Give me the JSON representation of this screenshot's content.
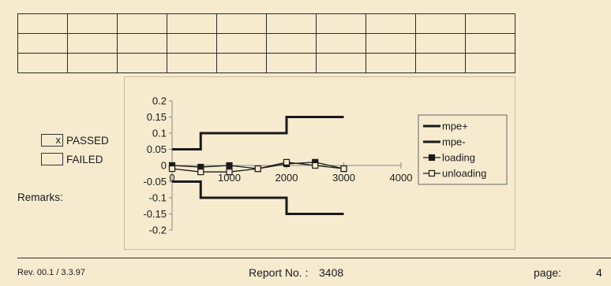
{
  "status": {
    "passed": {
      "mark": "x",
      "label": "PASSED"
    },
    "failed": {
      "mark": "",
      "label": "FAILED"
    }
  },
  "remarks_label": "Remarks:",
  "footer": {
    "revision": "Rev. 00.1 / 3.3.97",
    "report_label": "Report No. :",
    "report_number": "3408",
    "page_label": "page:",
    "page_number": "4"
  },
  "chart_data": {
    "type": "line",
    "title": "",
    "xlabel": "",
    "ylabel": "",
    "xlim": [
      0,
      4000
    ],
    "ylim": [
      -0.2,
      0.2
    ],
    "x_ticks": [
      0,
      1000,
      2000,
      3000,
      4000
    ],
    "y_ticks": [
      0.2,
      0.15,
      0.1,
      0.05,
      0,
      -0.05,
      -0.1,
      -0.15,
      -0.2
    ],
    "grid": false,
    "legend_position": "right",
    "series": [
      {
        "name": "mpe+",
        "style": "step",
        "color": "#1a1a1a",
        "x": [
          0,
          500,
          500,
          2000,
          2000,
          3000
        ],
        "y": [
          0.05,
          0.05,
          0.1,
          0.1,
          0.15,
          0.15
        ]
      },
      {
        "name": "mpe-",
        "style": "step",
        "color": "#1a1a1a",
        "x": [
          0,
          500,
          500,
          2000,
          2000,
          3000
        ],
        "y": [
          -0.05,
          -0.05,
          -0.1,
          -0.1,
          -0.15,
          -0.15
        ]
      },
      {
        "name": "loading",
        "marker": "filled-square",
        "color": "#1a1a1a",
        "x": [
          0,
          500,
          1000,
          1500,
          2000,
          2500,
          3000
        ],
        "y": [
          0,
          -0.005,
          0,
          -0.01,
          0.005,
          0.01,
          -0.01
        ]
      },
      {
        "name": "unloading",
        "marker": "open-square",
        "color": "#1a1a1a",
        "x": [
          0,
          500,
          1000,
          1500,
          2000,
          2500,
          3000
        ],
        "y": [
          -0.01,
          -0.02,
          -0.02,
          -0.01,
          0.01,
          0,
          -0.01
        ]
      }
    ]
  }
}
